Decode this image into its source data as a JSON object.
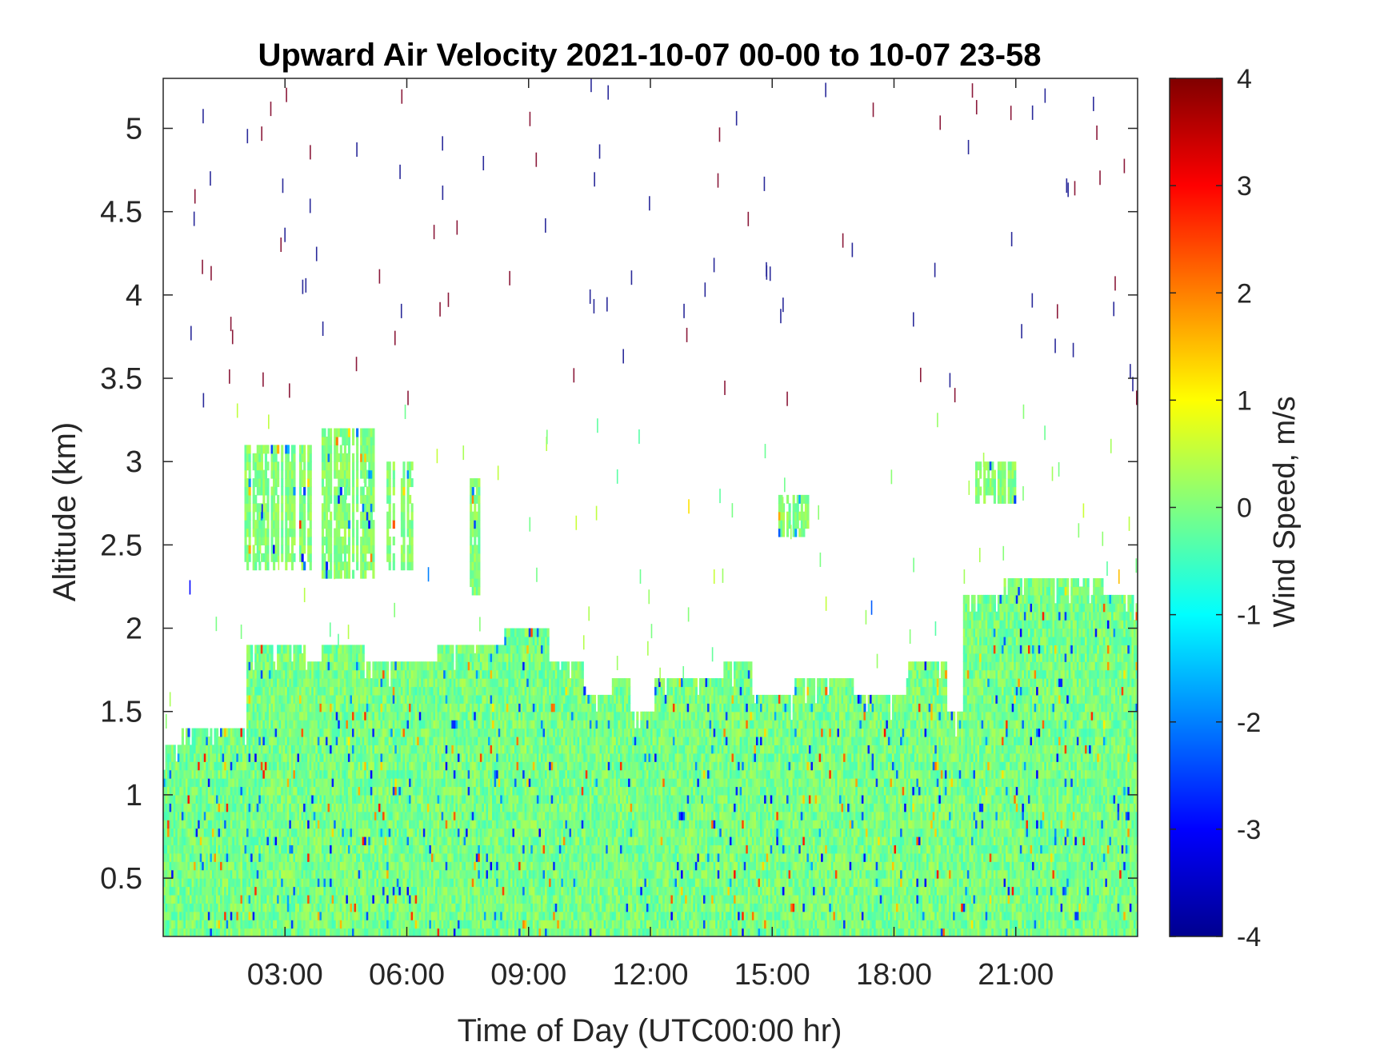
{
  "chart_data": {
    "type": "heatmap",
    "title": "Upward Air Velocity 2021-10-07 00-00 to 10-07 23-58",
    "xlabel": "Time of Day (UTC00:00 hr)",
    "ylabel": "Altitude (km)",
    "colorbar_label": "Wind Speed, m/s",
    "colormap": "jet",
    "xlim_hours": [
      0,
      24
    ],
    "ylim_km": [
      0.15,
      5.3
    ],
    "clim": [
      -4,
      4
    ],
    "x_ticks": [
      {
        "value": 3,
        "label": "03:00"
      },
      {
        "value": 6,
        "label": "06:00"
      },
      {
        "value": 9,
        "label": "09:00"
      },
      {
        "value": 12,
        "label": "12:00"
      },
      {
        "value": 15,
        "label": "15:00"
      },
      {
        "value": 18,
        "label": "18:00"
      },
      {
        "value": 21,
        "label": "21:00"
      }
    ],
    "y_ticks": [
      {
        "value": 0.5,
        "label": "0.5"
      },
      {
        "value": 1,
        "label": "1"
      },
      {
        "value": 1.5,
        "label": "1.5"
      },
      {
        "value": 2,
        "label": "2"
      },
      {
        "value": 2.5,
        "label": "2.5"
      },
      {
        "value": 3,
        "label": "3"
      },
      {
        "value": 3.5,
        "label": "3.5"
      },
      {
        "value": 4,
        "label": "4"
      },
      {
        "value": 4.5,
        "label": "4.5"
      },
      {
        "value": 5,
        "label": "5"
      }
    ],
    "colorbar_ticks": [
      {
        "value": 4,
        "label": "4"
      },
      {
        "value": 3,
        "label": "3"
      },
      {
        "value": 2,
        "label": "2"
      },
      {
        "value": 1,
        "label": "1"
      },
      {
        "value": 0,
        "label": "0"
      },
      {
        "value": -1,
        "label": "-1"
      },
      {
        "value": -2,
        "label": "-2"
      },
      {
        "value": -3,
        "label": "-3"
      },
      {
        "value": -4,
        "label": "-4"
      }
    ],
    "boundary_layer_top_km": [
      {
        "start": 0.0,
        "end": 0.45,
        "top": 1.3
      },
      {
        "start": 0.45,
        "end": 2.05,
        "top": 1.4
      },
      {
        "start": 2.05,
        "end": 3.5,
        "top": 1.9
      },
      {
        "start": 3.5,
        "end": 3.9,
        "top": 1.8
      },
      {
        "start": 3.9,
        "end": 4.95,
        "top": 1.9
      },
      {
        "start": 4.95,
        "end": 6.75,
        "top": 1.8
      },
      {
        "start": 6.75,
        "end": 8.35,
        "top": 1.9
      },
      {
        "start": 8.35,
        "end": 9.5,
        "top": 2.0
      },
      {
        "start": 9.5,
        "end": 10.4,
        "top": 1.8
      },
      {
        "start": 10.4,
        "end": 11.0,
        "top": 1.6
      },
      {
        "start": 11.0,
        "end": 11.5,
        "top": 1.7
      },
      {
        "start": 11.5,
        "end": 12.1,
        "top": 1.5
      },
      {
        "start": 12.1,
        "end": 13.8,
        "top": 1.7
      },
      {
        "start": 13.8,
        "end": 14.5,
        "top": 1.8
      },
      {
        "start": 14.5,
        "end": 15.5,
        "top": 1.6
      },
      {
        "start": 15.5,
        "end": 17.0,
        "top": 1.7
      },
      {
        "start": 17.0,
        "end": 18.3,
        "top": 1.6
      },
      {
        "start": 18.3,
        "end": 19.3,
        "top": 1.8
      },
      {
        "start": 19.3,
        "end": 19.7,
        "top": 1.5
      },
      {
        "start": 19.7,
        "end": 20.7,
        "top": 2.2
      },
      {
        "start": 20.7,
        "end": 21.8,
        "top": 2.3
      },
      {
        "start": 21.8,
        "end": 23.15,
        "top": 2.3
      },
      {
        "start": 23.15,
        "end": 24.0,
        "top": 2.2
      }
    ],
    "cloud_patches_km": [
      {
        "start": 2.0,
        "end": 3.6,
        "bottom": 2.35,
        "top": 3.05
      },
      {
        "start": 3.9,
        "end": 5.15,
        "bottom": 2.3,
        "top": 3.15
      },
      {
        "start": 5.5,
        "end": 6.1,
        "bottom": 2.35,
        "top": 2.95
      },
      {
        "start": 7.5,
        "end": 7.75,
        "bottom": 2.2,
        "top": 2.85
      },
      {
        "start": 15.1,
        "end": 15.9,
        "bottom": 2.55,
        "top": 2.75
      },
      {
        "start": 19.9,
        "end": 21.0,
        "bottom": 2.75,
        "top": 2.95
      }
    ]
  }
}
